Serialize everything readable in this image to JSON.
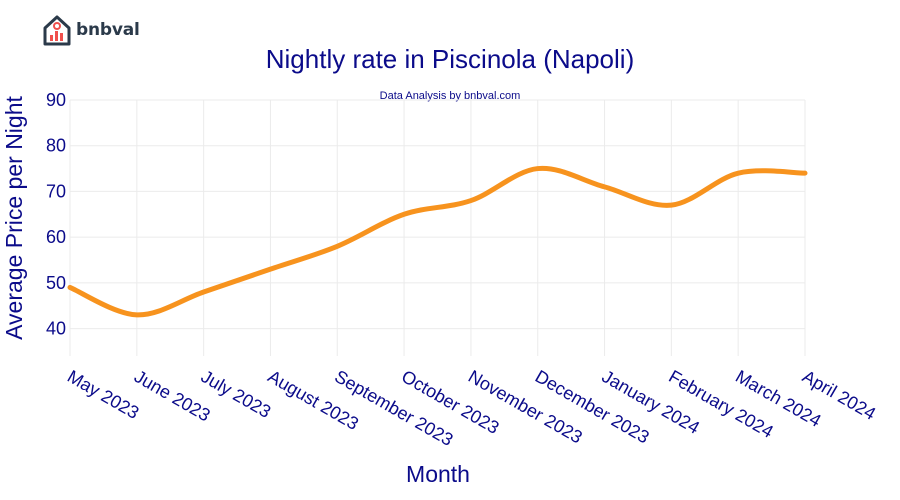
{
  "brand": {
    "name": "bnbval",
    "accent": "#f0504d",
    "dark": "#2b3a4a"
  },
  "chart_data": {
    "type": "line",
    "title": "Nightly rate in Piscinola (Napoli)",
    "subtitle": "Data Analysis by bnbval.com",
    "xlabel": "Month",
    "ylabel": "Average Price per Night",
    "categories": [
      "May 2023",
      "June 2023",
      "July 2023",
      "August 2023",
      "September 2023",
      "October 2023",
      "November 2023",
      "December 2023",
      "January 2024",
      "February 2024",
      "March 2024",
      "April 2024"
    ],
    "series": [
      {
        "values": [
          49,
          43,
          48,
          53,
          58,
          65,
          68,
          75,
          71,
          67,
          74,
          74
        ],
        "color": "#f7931e"
      }
    ],
    "yticks": [
      40,
      50,
      60,
      70,
      80,
      90
    ],
    "ylim": [
      34,
      90
    ],
    "grid": true
  }
}
